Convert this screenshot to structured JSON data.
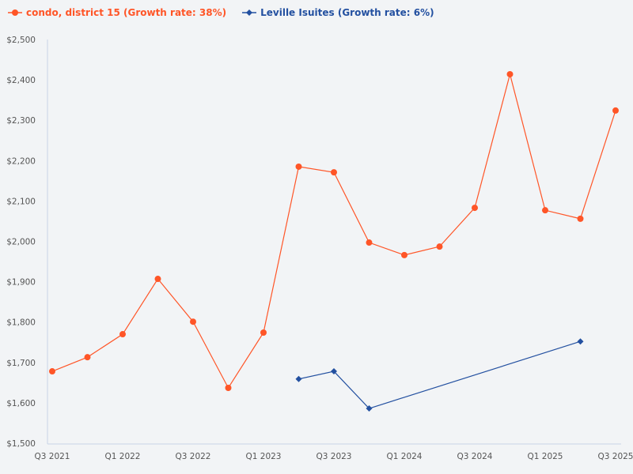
{
  "chart_data": {
    "type": "line",
    "title": "",
    "xlabel": "",
    "ylabel": "",
    "ylim": [
      1500,
      2500
    ],
    "y_ticks": [
      "$1,500",
      "$1,600",
      "$1,700",
      "$1,800",
      "$1,900",
      "$2,000",
      "$2,100",
      "$2,200",
      "$2,300",
      "$2,400",
      "$2,500"
    ],
    "x_ticks": [
      "Q3 2021",
      "Q1 2022",
      "Q3 2022",
      "Q1 2023",
      "Q3 2023",
      "Q1 2024",
      "Q3 2024",
      "Q1 2025",
      "Q3 2025"
    ],
    "x": [
      "Q3 2021",
      "Q4 2021",
      "Q1 2022",
      "Q2 2022",
      "Q3 2022",
      "Q4 2022",
      "Q1 2023",
      "Q2 2023",
      "Q3 2023",
      "Q4 2023",
      "Q1 2024",
      "Q2 2024",
      "Q3 2024",
      "Q4 2024",
      "Q1 2025",
      "Q2 2025",
      "Q3 2025"
    ],
    "grid": false,
    "legend_position": "top-left",
    "series": [
      {
        "name": "condo, district 15 (Growth rate: 38%)",
        "color": "#ff5527",
        "marker": "circle",
        "values": [
          1678,
          1713,
          1770,
          1907,
          1801,
          1637,
          1774,
          2185,
          2171,
          1997,
          1966,
          1987,
          2083,
          2414,
          2077,
          2056,
          2324
        ]
      },
      {
        "name": "Leville Isuites (Growth rate: 6%)",
        "color": "#2350a0",
        "marker": "diamond",
        "values": [
          null,
          null,
          null,
          null,
          null,
          null,
          null,
          1659,
          1678,
          1586,
          null,
          null,
          null,
          null,
          null,
          1752,
          null
        ]
      }
    ]
  }
}
